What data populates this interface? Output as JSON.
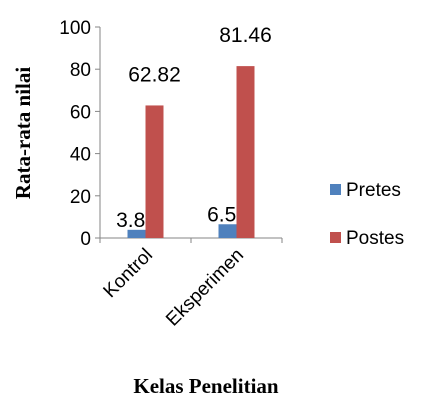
{
  "chart_data": {
    "type": "bar",
    "title": "",
    "xlabel": "Kelas Penelitian",
    "ylabel": "Rata-rata nilai",
    "categories": [
      "Kontrol",
      "Eksperimen"
    ],
    "ylim": [
      0,
      100
    ],
    "yticks": [
      0,
      20,
      40,
      60,
      80,
      100
    ],
    "grid": false,
    "legend_position": "right",
    "series": [
      {
        "name": "Pretes",
        "color": "#4F81BD",
        "values": [
          3.88,
          6.51
        ],
        "labels": [
          "3.88",
          "6.51"
        ]
      },
      {
        "name": "Postes",
        "color": "#C0504D",
        "values": [
          62.82,
          81.46
        ],
        "labels": [
          "62.82",
          "81.46"
        ]
      }
    ]
  }
}
